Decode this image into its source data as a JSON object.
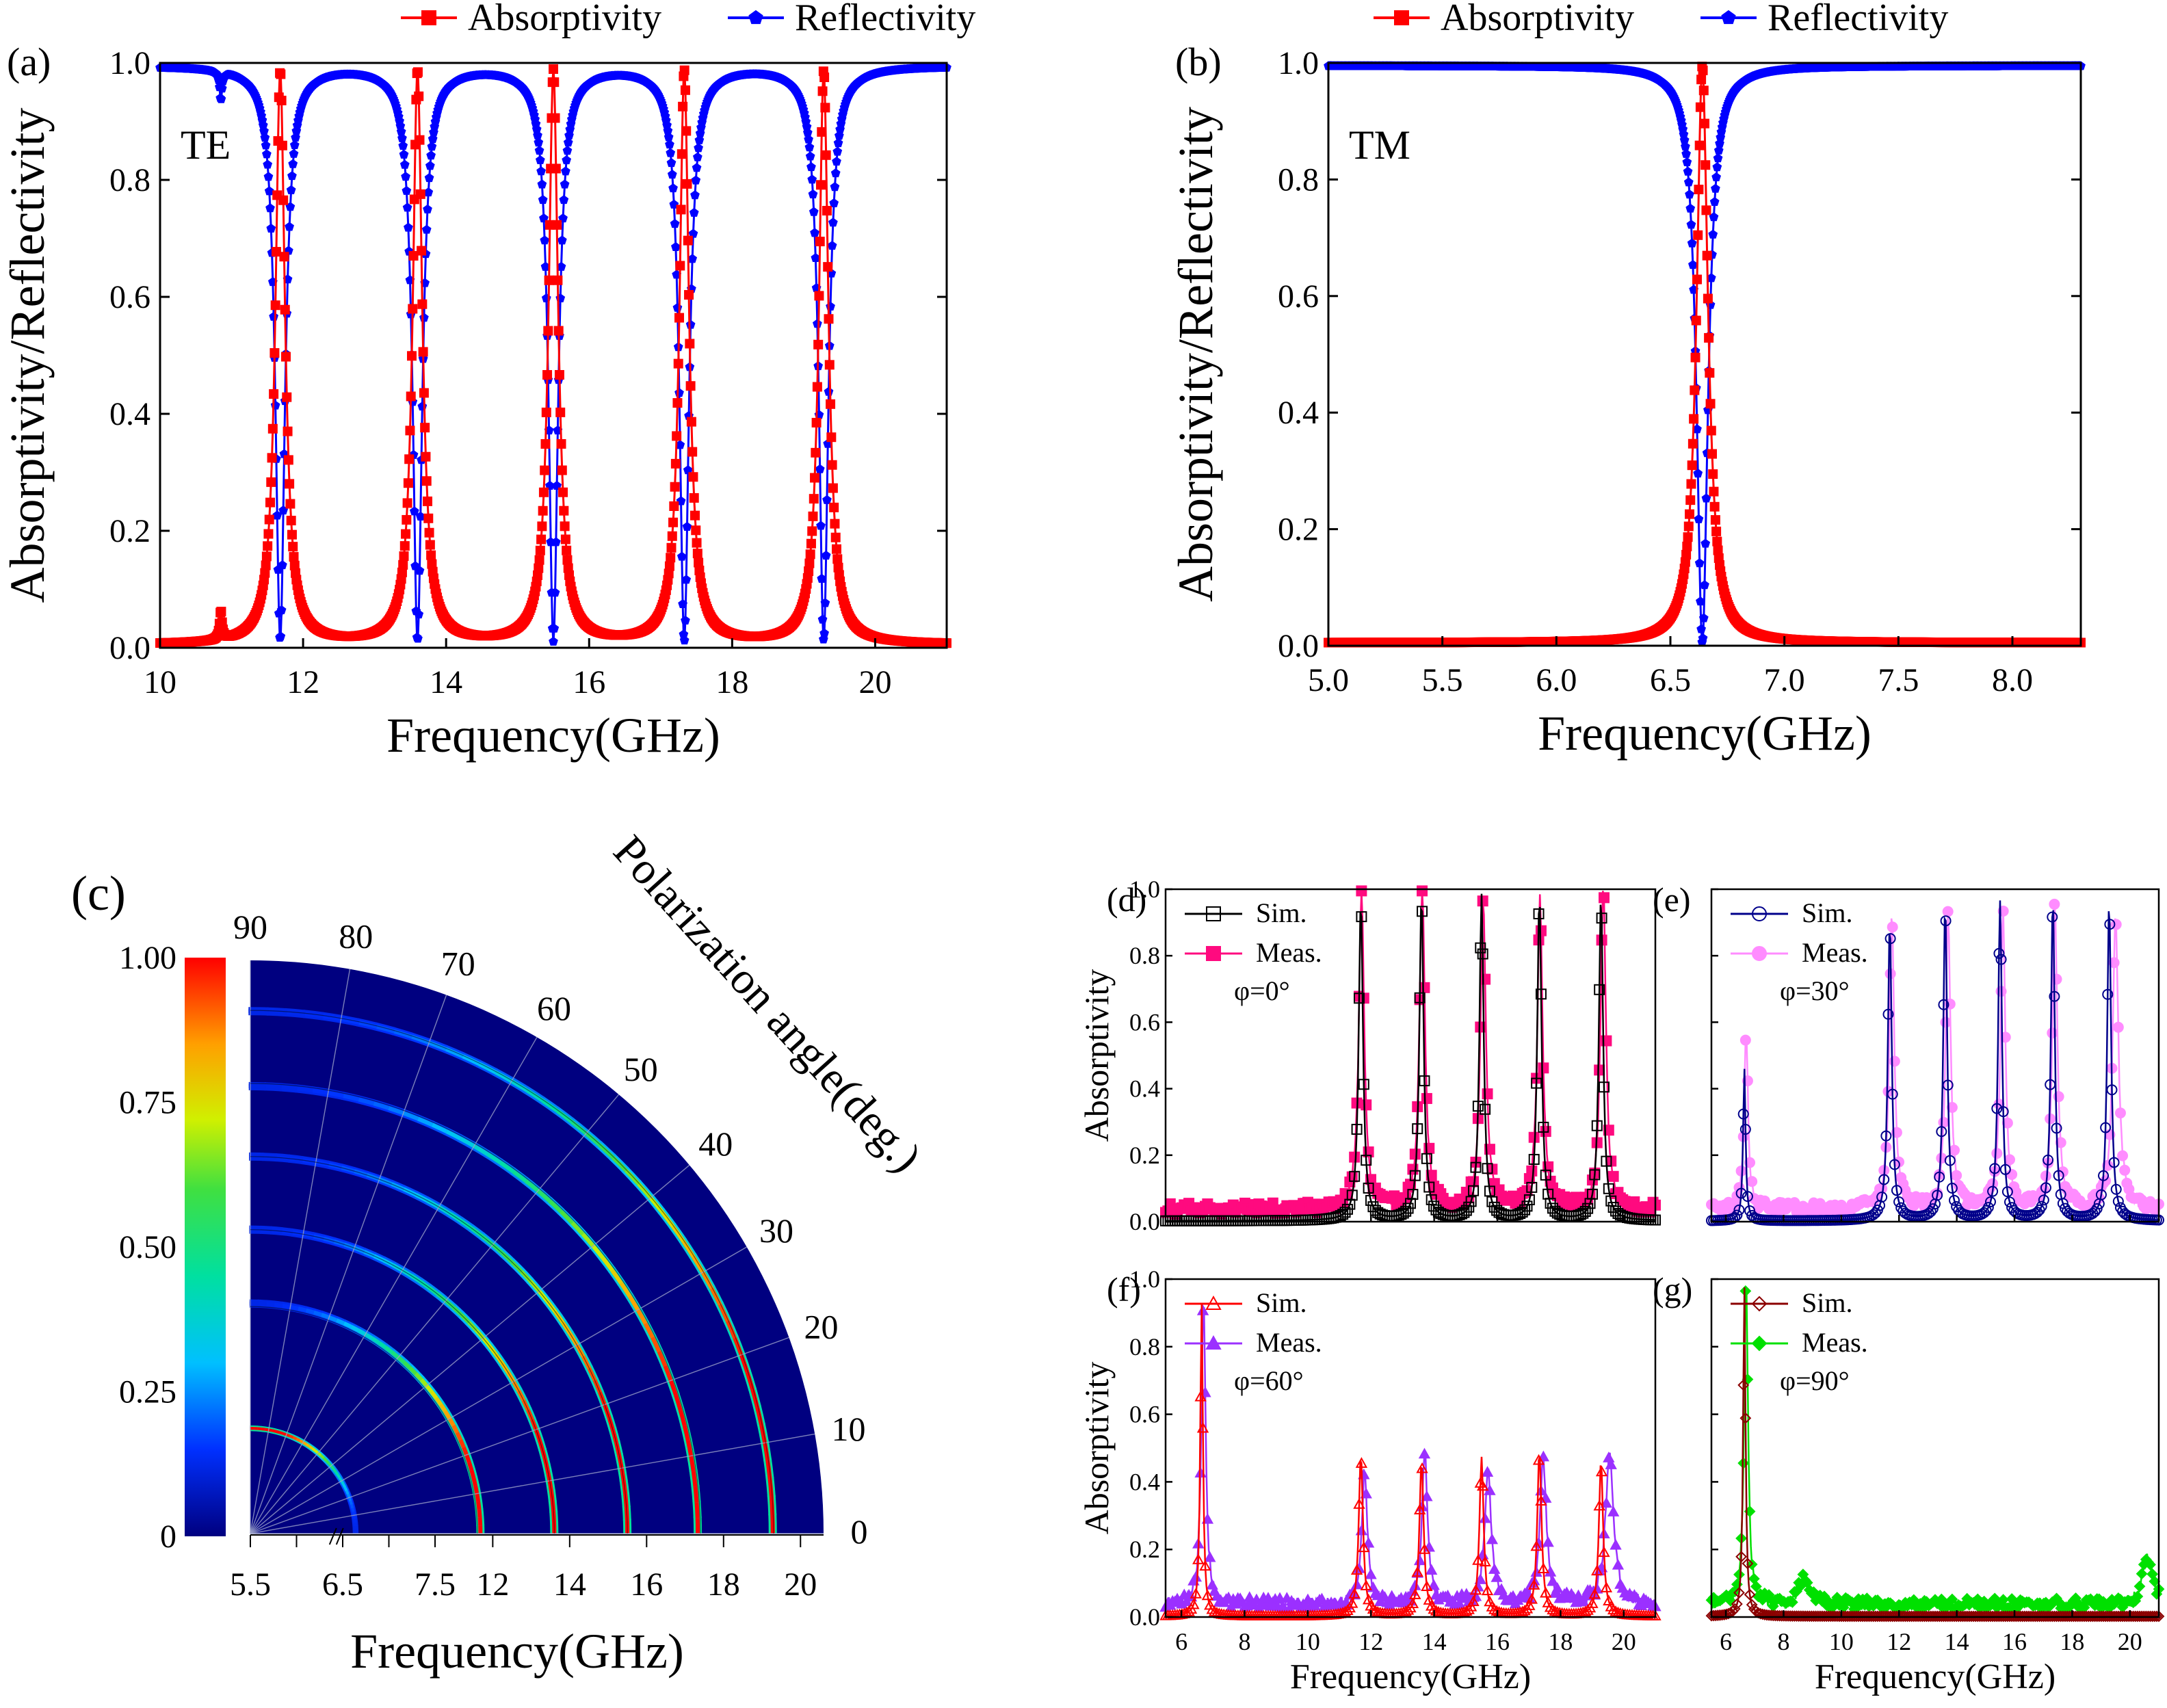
{
  "figure": {
    "colorbar": {
      "ticks": [
        "1.00",
        "0.75",
        "0.50",
        "0.25",
        "0"
      ]
    }
  },
  "chart_data": [
    {
      "id": "a",
      "panel_label": "(a)",
      "type": "line",
      "title": "",
      "annotation": "TE",
      "xlabel": "Frequency(GHz)",
      "ylabel": "Absorptivity/Reflectivity",
      "xlim": [
        10,
        21
      ],
      "ylim": [
        0,
        1
      ],
      "xticks": [
        10,
        12,
        14,
        16,
        18,
        20
      ],
      "yticks": [
        "0.0",
        "0.2",
        "0.4",
        "0.6",
        "0.8",
        "1.0"
      ],
      "legend": "top",
      "series": [
        {
          "name": "Absorptivity",
          "color": "#ff0000",
          "marker": "square",
          "baseline": 0.0,
          "peaks": [
            [
              10.85,
              0.05,
              0.02
            ],
            [
              11.68,
              0.98,
              0.08
            ],
            [
              13.6,
              0.98,
              0.08
            ],
            [
              15.5,
              0.98,
              0.08
            ],
            [
              17.33,
              0.98,
              0.08
            ],
            [
              19.28,
              0.98,
              0.08
            ]
          ]
        },
        {
          "name": "Reflectivity",
          "color": "#0000ff",
          "marker": "pentagon",
          "baseline": 1.0,
          "dips": [
            [
              10.85,
              0.05,
              0.02
            ],
            [
              11.68,
              0.98,
              0.08
            ],
            [
              13.6,
              0.98,
              0.08
            ],
            [
              15.5,
              0.98,
              0.08
            ],
            [
              17.33,
              0.98,
              0.08
            ],
            [
              19.28,
              0.98,
              0.08
            ]
          ]
        }
      ]
    },
    {
      "id": "b",
      "panel_label": "(b)",
      "type": "line",
      "title": "",
      "annotation": "TM",
      "xlabel": "Frequency(GHz)",
      "ylabel": "Absorptivity/Reflectivity",
      "xlim": [
        5.0,
        8.3
      ],
      "ylim": [
        0,
        1
      ],
      "xticks": [
        "5.0",
        "5.5",
        "6.0",
        "6.5",
        "7.0",
        "7.5",
        "8.0"
      ],
      "yticks": [
        "0.0",
        "0.2",
        "0.4",
        "0.6",
        "0.8",
        "1.0"
      ],
      "legend": "top",
      "series": [
        {
          "name": "Absorptivity",
          "color": "#ff0000",
          "marker": "square",
          "baseline": 0.0,
          "peaks": [
            [
              6.64,
              0.99,
              0.03
            ]
          ]
        },
        {
          "name": "Reflectivity",
          "color": "#0000ff",
          "marker": "pentagon",
          "baseline": 1.0,
          "dips": [
            [
              6.64,
              0.99,
              0.03
            ]
          ]
        }
      ]
    },
    {
      "id": "c",
      "panel_label": "(c)",
      "type": "heatmap",
      "title": "Polarization angle(deg.)",
      "xlabel": "Frequency(GHz)",
      "radial_ticks": [
        "5.5",
        "6.5",
        "7.5",
        "12",
        "14",
        "16",
        "18",
        "20"
      ],
      "angle_ticks": [
        "0",
        "10",
        "20",
        "30",
        "40",
        "50",
        "60",
        "70",
        "80",
        "90"
      ],
      "color_range": [
        0,
        1
      ],
      "resonances_ghz": [
        6.64,
        11.68,
        13.6,
        15.5,
        17.33,
        19.28
      ]
    },
    {
      "id": "d",
      "panel_label": "(d)",
      "type": "line",
      "ylabel": "Absorptivity",
      "xlabel": "",
      "xlim": [
        5.5,
        21
      ],
      "ylim": [
        0,
        1
      ],
      "yticks": [
        "0.0",
        "0.2",
        "0.4",
        "0.6",
        "0.8",
        "1.0"
      ],
      "xticks": [],
      "angle_text": "φ=0°",
      "series": [
        {
          "name": "Sim.",
          "color": "#000000",
          "marker": "open-square",
          "peaks": [
            [
              11.68,
              0.97,
              0.08
            ],
            [
              13.6,
              0.98,
              0.08
            ],
            [
              15.5,
              0.98,
              0.08
            ],
            [
              17.33,
              0.98,
              0.08
            ],
            [
              19.28,
              0.98,
              0.08
            ]
          ]
        },
        {
          "name": "Meas.",
          "color": "#ff0a7f",
          "marker": "filled-square",
          "peaks": [
            [
              11.7,
              0.98,
              0.1
            ],
            [
              13.62,
              0.99,
              0.1
            ],
            [
              15.55,
              0.93,
              0.1
            ],
            [
              17.35,
              0.93,
              0.1
            ],
            [
              19.35,
              0.99,
              0.1
            ]
          ]
        }
      ]
    },
    {
      "id": "e",
      "panel_label": "(e)",
      "type": "line",
      "xlim": [
        5.5,
        21
      ],
      "ylim": [
        0,
        1
      ],
      "yticks": [],
      "xticks": [],
      "angle_text": "φ=30°",
      "series": [
        {
          "name": "Sim.",
          "color": "#00008b",
          "marker": "open-circle",
          "peaks": [
            [
              6.64,
              0.46,
              0.05
            ],
            [
              11.68,
              0.9,
              0.08
            ],
            [
              13.6,
              0.95,
              0.08
            ],
            [
              15.5,
              0.96,
              0.08
            ],
            [
              17.33,
              0.97,
              0.08
            ],
            [
              19.28,
              0.96,
              0.08
            ]
          ]
        },
        {
          "name": "Meas.",
          "color": "#ff8cff",
          "marker": "filled-circle",
          "peaks": [
            [
              6.7,
              0.55,
              0.08
            ],
            [
              11.75,
              0.88,
              0.1
            ],
            [
              13.7,
              0.9,
              0.1
            ],
            [
              15.6,
              0.9,
              0.1
            ],
            [
              17.4,
              0.92,
              0.1
            ],
            [
              19.5,
              0.88,
              0.12
            ]
          ]
        }
      ]
    },
    {
      "id": "f",
      "panel_label": "(f)",
      "type": "line",
      "ylabel": "Absorptivity",
      "xlabel": "Frequency(GHz)",
      "xlim": [
        5.5,
        21
      ],
      "ylim": [
        0,
        1
      ],
      "yticks": [
        "0.0",
        "0.2",
        "0.4",
        "0.6",
        "0.8",
        "1.0"
      ],
      "xticks": [
        6,
        8,
        10,
        12,
        14,
        16,
        18,
        20
      ],
      "angle_text": "φ=60°",
      "series": [
        {
          "name": "Sim.",
          "color": "#ff0000",
          "marker": "open-triangle",
          "peaks": [
            [
              6.64,
              0.93,
              0.05
            ],
            [
              11.68,
              0.48,
              0.08
            ],
            [
              13.6,
              0.46,
              0.08
            ],
            [
              15.5,
              0.47,
              0.08
            ],
            [
              17.33,
              0.49,
              0.08
            ],
            [
              19.28,
              0.46,
              0.08
            ]
          ]
        },
        {
          "name": "Meas.",
          "color": "#9b30ff",
          "marker": "filled-triangle",
          "peaks": [
            [
              6.7,
              0.92,
              0.08
            ],
            [
              11.8,
              0.4,
              0.1
            ],
            [
              13.7,
              0.45,
              0.1
            ],
            [
              15.7,
              0.4,
              0.12
            ],
            [
              17.45,
              0.43,
              0.12
            ],
            [
              19.55,
              0.45,
              0.15
            ]
          ]
        }
      ]
    },
    {
      "id": "g",
      "panel_label": "(g)",
      "type": "line",
      "xlabel": "Frequency(GHz)",
      "xlim": [
        5.5,
        21
      ],
      "ylim": [
        0,
        1
      ],
      "yticks": [],
      "xticks": [
        6,
        8,
        10,
        12,
        14,
        16,
        18,
        20
      ],
      "angle_text": "φ=90°",
      "series": [
        {
          "name": "Sim.",
          "color": "#8b0000",
          "marker": "open-diamond",
          "peaks": [
            [
              6.64,
              0.98,
              0.05
            ]
          ]
        },
        {
          "name": "Meas.",
          "color": "#00e000",
          "marker": "filled-diamond",
          "peaks": [
            [
              6.7,
              0.97,
              0.08
            ],
            [
              8.7,
              0.08,
              0.2
            ],
            [
              20.6,
              0.14,
              0.2
            ]
          ]
        }
      ]
    }
  ]
}
